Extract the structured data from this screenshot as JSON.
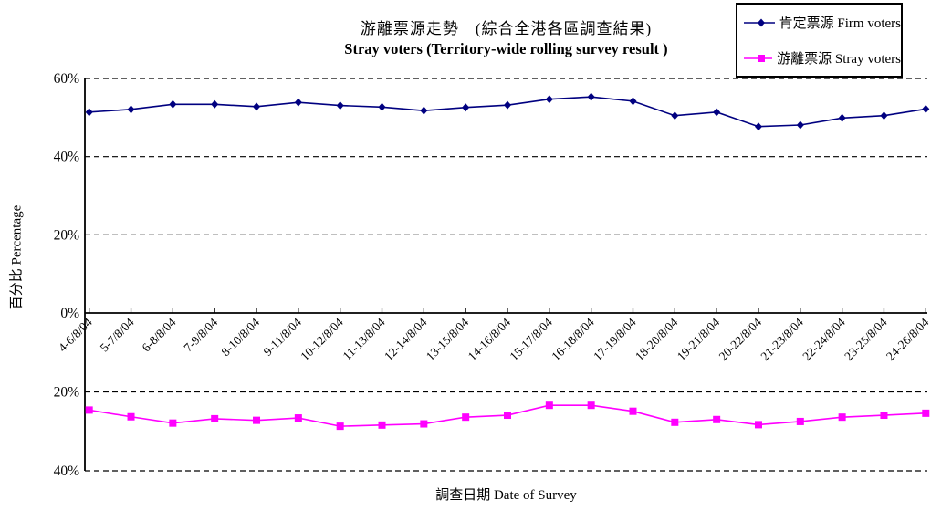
{
  "title_zh": "游離票源走勢　(綜合全港各區調查結果)",
  "title_en": "Stray voters (Territory-wide rolling survey result )",
  "legend": {
    "position": "top-right",
    "items": [
      {
        "label": "肯定票源 Firm voters",
        "color": "#000080",
        "marker": "diamond"
      },
      {
        "label": "游離票源 Stray voters",
        "color": "#FF00FF",
        "marker": "square"
      }
    ]
  },
  "axes": {
    "y_title": "百分比 Percentage",
    "x_title": "調查日期 Date of Survey",
    "upper_tick_labels": [
      "60%",
      "40%",
      "20%",
      "0%"
    ],
    "lower_tick_labels": [
      "20%",
      "40%"
    ]
  },
  "chart_data": {
    "type": "line",
    "title": "游離票源走勢 (綜合全港各區調查結果) / Stray voters (Territory-wide rolling survey result )",
    "xlabel": "調查日期 Date of Survey",
    "ylabel": "百分比 Percentage",
    "grid": true,
    "legend_position": "top-right",
    "layout": "split panel: firm voters plotted on upper axis 0-60% (up), stray voters on lower inverted axis 0-40% (down)",
    "categories": [
      "4-6/8/04",
      "5-7/8/04",
      "6-8/8/04",
      "7-9/8/04",
      "8-10/8/04",
      "9-11/8/04",
      "10-12/8/04",
      "11-13/8/04",
      "12-14/8/04",
      "13-15/8/04",
      "14-16/8/04",
      "15-17/8/04",
      "16-18/8/04",
      "17-19/8/04",
      "18-20/8/04",
      "19-21/8/04",
      "20-22/8/04",
      "21-23/8/04",
      "22-24/8/04",
      "23-25/8/04",
      "24-26/8/04"
    ],
    "upper_axis": {
      "range": [
        0,
        60
      ],
      "ticks": [
        0,
        20,
        40,
        60
      ],
      "inverted": false
    },
    "lower_axis": {
      "range": [
        0,
        40
      ],
      "ticks": [
        20,
        40
      ],
      "inverted": true
    },
    "series": [
      {
        "name": "肯定票源 Firm voters",
        "color": "#000080",
        "marker": "diamond",
        "axis": "upper",
        "values": [
          51.4,
          52.1,
          53.4,
          53.4,
          52.8,
          53.9,
          53.1,
          52.7,
          51.8,
          52.6,
          53.2,
          54.7,
          55.3,
          54.2,
          50.5,
          51.4,
          47.7,
          48.1,
          49.9,
          50.5,
          52.2
        ]
      },
      {
        "name": "游離票源 Stray voters",
        "color": "#FF00FF",
        "marker": "square",
        "axis": "lower",
        "values": [
          24.6,
          26.3,
          27.9,
          26.8,
          27.2,
          26.6,
          28.7,
          28.4,
          28.1,
          26.4,
          25.9,
          23.4,
          23.4,
          24.9,
          27.7,
          27.0,
          28.3,
          27.5,
          26.4,
          25.9,
          25.4
        ]
      }
    ]
  }
}
